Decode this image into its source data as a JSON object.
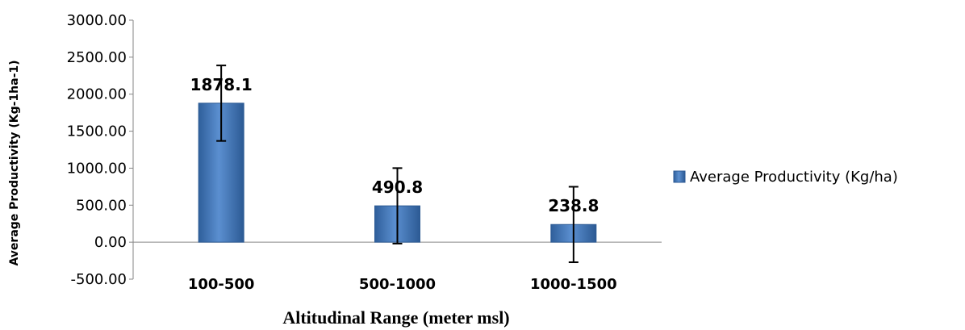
{
  "chart_data": {
    "type": "bar",
    "categories": [
      "100-500",
      "500-1000",
      "1000-1500"
    ],
    "series": [
      {
        "name": "Average Productivity (Kg/ha)",
        "values": [
          1878.1,
          490.8,
          238.8
        ],
        "value_labels": [
          "1878.1",
          "490.8",
          "238.8"
        ],
        "error": [
          510,
          510,
          510
        ],
        "color": "#4F81BD"
      }
    ],
    "title": "",
    "xlabel": "Altitudinal Range (meter msl)",
    "ylabel": "Average Productivity (Kg-1ha-1)",
    "ylim": [
      -500,
      3000
    ],
    "yticks": [
      3000,
      2500,
      2000,
      1500,
      1000,
      500,
      0,
      -500
    ],
    "ytick_labels": [
      "3000.00",
      "2500.00",
      "2000.00",
      "1500.00",
      "1000.00",
      "500.00",
      "0.00",
      "-500.00"
    ],
    "grid": false,
    "legend_position": "right"
  }
}
